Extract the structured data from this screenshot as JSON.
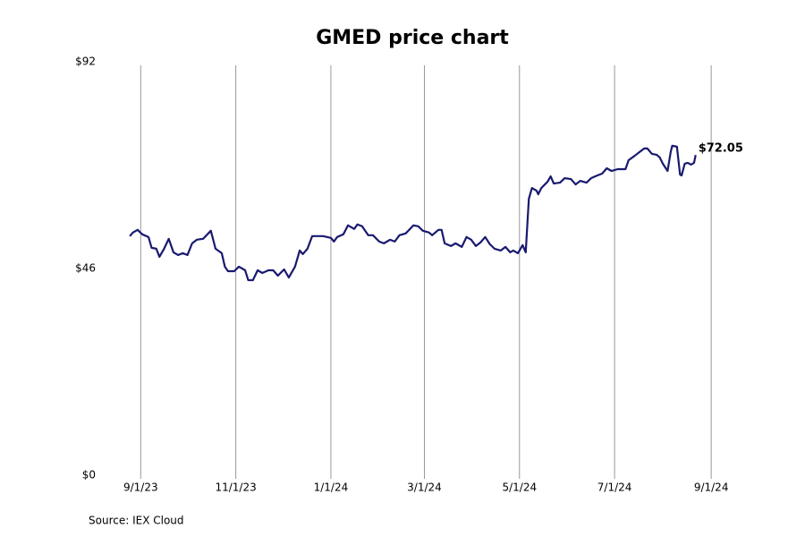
{
  "chart_data": {
    "type": "line",
    "title": "GMED price chart",
    "source": "Source: IEX Cloud",
    "color": "#191970",
    "x": [
      "8/25/23",
      "8/27/23",
      "8/30/23",
      "9/2/23",
      "9/6/23",
      "9/8/23",
      "9/11/23",
      "9/13/23",
      "9/16/23",
      "9/19/23",
      "9/22/23",
      "9/25/23",
      "9/28/23",
      "10/1/23",
      "10/4/23",
      "10/7/23",
      "10/11/23",
      "10/16/23",
      "10/19/23",
      "10/23/23",
      "10/25/23",
      "10/27/23",
      "10/31/23",
      "11/3/23",
      "11/7/23",
      "11/9/23",
      "11/12/23",
      "11/15/23",
      "11/18/23",
      "11/22/23",
      "11/25/23",
      "11/28/23",
      "12/2/23",
      "12/5/23",
      "12/9/23",
      "12/12/23",
      "12/14/23",
      "12/17/23",
      "12/20/23",
      "12/24/23",
      "12/27/23",
      "1/1/24",
      "1/3/24",
      "1/5/24",
      "1/9/24",
      "1/12/24",
      "1/16/24",
      "1/18/24",
      "1/21/24",
      "1/25/24",
      "1/28/24",
      "2/1/24",
      "2/4/24",
      "2/8/24",
      "2/11/24",
      "2/14/24",
      "2/18/24",
      "2/23/24",
      "2/26/24",
      "2/29/24",
      "3/4/24",
      "3/6/24",
      "3/10/24",
      "3/12/24",
      "3/14/24",
      "3/18/24",
      "3/21/24",
      "3/25/24",
      "3/28/24",
      "3/31/24",
      "4/3/24",
      "4/6/24",
      "4/9/24",
      "4/12/24",
      "4/15/24",
      "4/19/24",
      "4/22/24",
      "4/25/24",
      "4/27/24",
      "4/30/24",
      "5/3/24",
      "5/5/24",
      "5/7/24",
      "5/9/24",
      "5/12/24",
      "5/13/24",
      "5/15/24",
      "5/19/24",
      "5/21/24",
      "5/23/24",
      "5/27/24",
      "5/30/24",
      "6/3/24",
      "6/6/24",
      "6/9/24",
      "6/13/24",
      "6/16/24",
      "6/20/24",
      "6/23/24",
      "6/26/24",
      "6/29/24",
      "7/3/24",
      "7/8/24",
      "7/10/24",
      "7/14/24",
      "7/17/24",
      "7/20/24",
      "7/22/24",
      "7/25/24",
      "7/28/24",
      "7/30/24",
      "8/1/24",
      "8/4/24",
      "8/6/24",
      "8/7/24",
      "8/10/24",
      "8/12/24",
      "8/13/24",
      "8/15/24",
      "8/17/24",
      "8/19/24",
      "8/21/24",
      "8/22/24"
    ],
    "values": [
      54.0,
      54.8,
      55.4,
      54.4,
      53.8,
      51.4,
      51.2,
      49.4,
      51.2,
      53.4,
      50.4,
      49.8,
      50.2,
      49.8,
      52.4,
      53.2,
      53.4,
      55.2,
      51.2,
      50.2,
      47.2,
      46.2,
      46.2,
      47.2,
      46.4,
      44.2,
      44.2,
      46.4,
      45.8,
      46.4,
      46.4,
      45.2,
      46.6,
      44.8,
      47.2,
      50.8,
      50.0,
      51.2,
      54.0,
      54.0,
      54.0,
      53.6,
      52.8,
      53.8,
      54.4,
      56.4,
      55.6,
      56.6,
      56.2,
      54.2,
      54.2,
      52.8,
      52.4,
      53.2,
      52.8,
      54.2,
      54.6,
      56.4,
      56.2,
      55.2,
      54.8,
      54.2,
      55.4,
      55.4,
      52.4,
      51.8,
      52.4,
      51.6,
      53.8,
      53.2,
      51.8,
      52.6,
      53.8,
      52.2,
      51.2,
      50.8,
      51.6,
      50.4,
      50.8,
      50.2,
      52.0,
      50.4,
      62.3,
      64.7,
      64.1,
      63.3,
      64.7,
      66.1,
      67.3,
      65.7,
      65.9,
      66.9,
      66.7,
      65.5,
      66.3,
      65.9,
      66.9,
      67.5,
      67.9,
      69.1,
      68.5,
      68.9,
      68.9,
      70.9,
      71.9,
      72.7,
      73.5,
      73.5,
      72.3,
      72.1,
      71.5,
      70.1,
      68.5,
      72.7,
      74.1,
      73.9,
      67.7,
      67.5,
      70.1,
      70.3,
      69.9,
      70.3,
      72.05
    ],
    "value_labels": [
      null,
      null,
      null,
      null,
      null,
      null,
      null,
      null,
      null,
      null,
      null,
      null,
      null,
      null,
      null,
      null,
      null,
      null,
      null,
      null,
      null,
      null,
      null,
      null,
      null,
      null,
      null,
      null,
      null,
      null,
      null,
      null,
      null,
      null,
      null,
      null,
      null,
      null,
      null,
      null,
      null,
      null,
      null,
      null,
      null,
      null,
      null,
      null,
      null,
      null,
      null,
      null,
      null,
      null,
      null,
      null,
      null,
      null,
      null,
      null,
      null,
      null,
      null,
      null,
      null,
      null,
      null,
      null,
      null,
      null,
      null,
      null,
      null,
      null,
      null,
      null,
      null,
      null,
      null,
      null,
      null,
      null,
      null,
      null,
      null,
      null,
      null,
      null,
      null,
      null,
      null,
      null,
      null,
      null,
      null,
      null,
      null,
      null,
      null,
      null,
      null,
      null,
      null,
      null,
      null,
      null,
      null,
      null,
      null,
      null,
      null,
      null,
      null,
      null,
      null,
      null,
      null,
      null,
      null,
      null,
      null,
      null,
      "$72.05"
    ],
    "xlim": [
      "8/6/23",
      "9/21/24"
    ],
    "xticks": [
      "9/1/23",
      "11/1/23",
      "1/1/24",
      "3/1/24",
      "5/1/24",
      "7/1/24",
      "9/1/24"
    ],
    "ylim": [
      0,
      92
    ],
    "yticks": [
      {
        "value": 0,
        "label": "$0"
      },
      {
        "value": 46,
        "label": "$46"
      },
      {
        "value": 92,
        "label": "$92"
      }
    ],
    "grid": "x"
  }
}
